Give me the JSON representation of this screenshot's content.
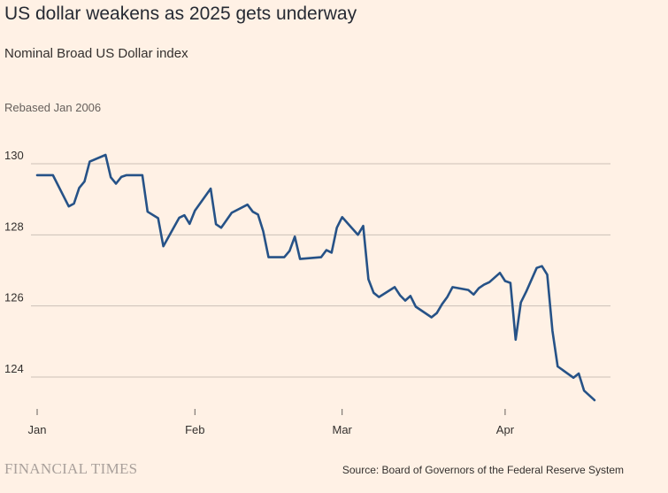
{
  "header": {
    "title": "US dollar weakens as 2025 gets underway",
    "subtitle": "Nominal Broad US Dollar index",
    "unit": "Rebased Jan 2006"
  },
  "footer": {
    "brand": "FINANCIAL TIMES",
    "source": "Source: Board of Governors of the Federal Reserve System"
  },
  "colors": {
    "line": "#265287",
    "grid": "#CCC1B7",
    "background": "#FFF1E5"
  },
  "chart_data": {
    "type": "line",
    "title": "US dollar weakens as 2025 gets underway",
    "subtitle": "Nominal Broad US Dollar index",
    "ylabel": "Rebased Jan 2006",
    "ylim": [
      123,
      131
    ],
    "yticks": [
      124,
      126,
      128,
      130
    ],
    "xlim": [
      "2025-01-02",
      "2025-04-17"
    ],
    "xticks": [
      {
        "label": "Jan",
        "date": "2025-01-02"
      },
      {
        "label": "Feb",
        "date": "2025-02-01"
      },
      {
        "label": "Mar",
        "date": "2025-03-01"
      },
      {
        "label": "Apr",
        "date": "2025-04-01"
      }
    ],
    "grid": true,
    "series": [
      {
        "points": [
          [
            "2025-01-02",
            129.68
          ],
          [
            "2025-01-05",
            129.68
          ],
          [
            "2025-01-08",
            128.8
          ],
          [
            "2025-01-09",
            128.88
          ],
          [
            "2025-01-10",
            129.32
          ],
          [
            "2025-01-11",
            129.5
          ],
          [
            "2025-01-12",
            130.06
          ],
          [
            "2025-01-15",
            130.25
          ],
          [
            "2025-01-16",
            129.62
          ],
          [
            "2025-01-17",
            129.44
          ],
          [
            "2025-01-18",
            129.63
          ],
          [
            "2025-01-19",
            129.68
          ],
          [
            "2025-01-22",
            129.68
          ],
          [
            "2025-01-23",
            128.65
          ],
          [
            "2025-01-25",
            128.47
          ],
          [
            "2025-01-26",
            127.68
          ],
          [
            "2025-01-29",
            128.48
          ],
          [
            "2025-01-30",
            128.55
          ],
          [
            "2025-01-31",
            128.31
          ],
          [
            "2025-02-01",
            128.68
          ],
          [
            "2025-02-04",
            129.3
          ],
          [
            "2025-02-05",
            128.3
          ],
          [
            "2025-02-06",
            128.2
          ],
          [
            "2025-02-08",
            128.62
          ],
          [
            "2025-02-11",
            128.85
          ],
          [
            "2025-02-12",
            128.65
          ],
          [
            "2025-02-13",
            128.57
          ],
          [
            "2025-02-14",
            128.1
          ],
          [
            "2025-02-15",
            127.37
          ],
          [
            "2025-02-18",
            127.37
          ],
          [
            "2025-02-19",
            127.55
          ],
          [
            "2025-02-20",
            127.95
          ],
          [
            "2025-02-21",
            127.32
          ],
          [
            "2025-02-25",
            127.37
          ],
          [
            "2025-02-26",
            127.57
          ],
          [
            "2025-02-27",
            127.5
          ],
          [
            "2025-02-28",
            128.2
          ],
          [
            "2025-03-01",
            128.5
          ],
          [
            "2025-03-04",
            128.0
          ],
          [
            "2025-03-05",
            128.25
          ],
          [
            "2025-03-06",
            126.75
          ],
          [
            "2025-03-07",
            126.37
          ],
          [
            "2025-03-08",
            126.25
          ],
          [
            "2025-03-11",
            126.53
          ],
          [
            "2025-03-12",
            126.3
          ],
          [
            "2025-03-13",
            126.15
          ],
          [
            "2025-03-14",
            126.28
          ],
          [
            "2025-03-15",
            125.98
          ],
          [
            "2025-03-18",
            125.68
          ],
          [
            "2025-03-19",
            125.8
          ],
          [
            "2025-03-20",
            126.05
          ],
          [
            "2025-03-21",
            126.25
          ],
          [
            "2025-03-22",
            126.53
          ],
          [
            "2025-03-25",
            126.45
          ],
          [
            "2025-03-26",
            126.32
          ],
          [
            "2025-03-27",
            126.5
          ],
          [
            "2025-03-28",
            126.6
          ],
          [
            "2025-03-29",
            126.67
          ],
          [
            "2025-03-31",
            126.93
          ],
          [
            "2025-04-01",
            126.7
          ],
          [
            "2025-04-02",
            126.65
          ],
          [
            "2025-04-03",
            125.05
          ],
          [
            "2025-04-04",
            126.1
          ],
          [
            "2025-04-05",
            126.4
          ],
          [
            "2025-04-07",
            127.07
          ],
          [
            "2025-04-08",
            127.12
          ],
          [
            "2025-04-09",
            126.88
          ],
          [
            "2025-04-10",
            125.3
          ],
          [
            "2025-04-11",
            124.3
          ],
          [
            "2025-04-14",
            123.98
          ],
          [
            "2025-04-15",
            124.1
          ],
          [
            "2025-04-16",
            123.62
          ],
          [
            "2025-04-18",
            123.35
          ]
        ]
      }
    ]
  }
}
